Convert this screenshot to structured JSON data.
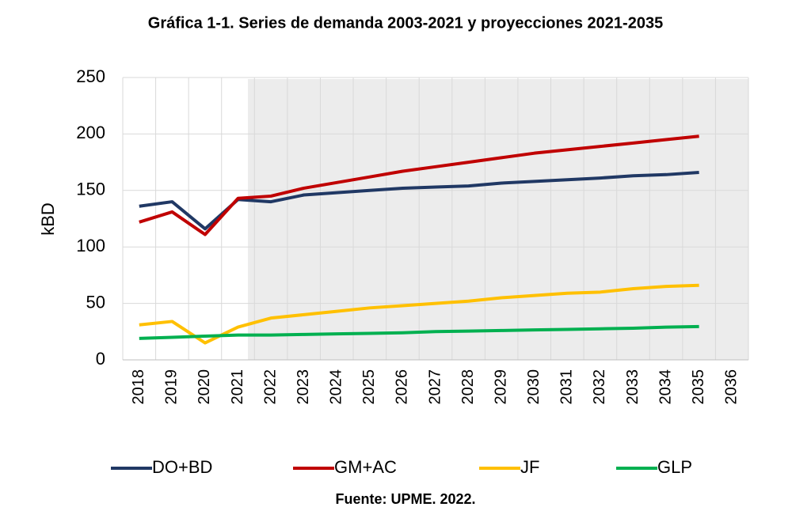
{
  "chart_data": {
    "type": "line",
    "title": "Gráfica 1-1. Series de demanda 2003-2021 y proyecciones 2021-2035",
    "y_label": "kBD",
    "source": "Fuente: UPME. 2022.",
    "categories": [
      "2018",
      "2019",
      "2020",
      "2021",
      "2022",
      "2023",
      "2024",
      "2025",
      "2026",
      "2027",
      "2028",
      "2029",
      "2030",
      "2031",
      "2032",
      "2033",
      "2034",
      "2035",
      "2036"
    ],
    "series": [
      {
        "name": "DO+BD",
        "color": "#203864",
        "values": [
          136,
          140,
          116,
          142,
          140,
          146,
          148,
          150,
          152,
          153,
          154,
          156.5,
          158,
          159.5,
          161,
          163,
          164,
          166,
          null
        ]
      },
      {
        "name": "GM+AC",
        "color": "#c00000",
        "values": [
          122,
          131,
          111,
          143,
          145,
          152,
          157,
          162,
          167,
          171,
          175,
          179,
          183,
          186,
          189,
          192,
          195,
          198,
          null
        ]
      },
      {
        "name": "JF",
        "color": "#ffc000",
        "values": [
          31,
          34,
          15,
          29,
          37,
          40,
          43,
          46,
          48,
          50,
          52,
          55,
          57,
          59,
          60,
          63,
          65,
          66,
          null
        ]
      },
      {
        "name": "GLP",
        "color": "#00b050",
        "values": [
          19,
          20,
          21,
          22,
          22,
          22.5,
          23,
          23.5,
          24,
          25,
          25.5,
          26,
          26.5,
          27,
          27.5,
          28,
          29,
          29.5,
          null
        ]
      }
    ],
    "ylim": [
      0,
      250
    ],
    "yticks": [
      0,
      50,
      100,
      150,
      200,
      250
    ],
    "grid": true,
    "legend": "bottom"
  }
}
